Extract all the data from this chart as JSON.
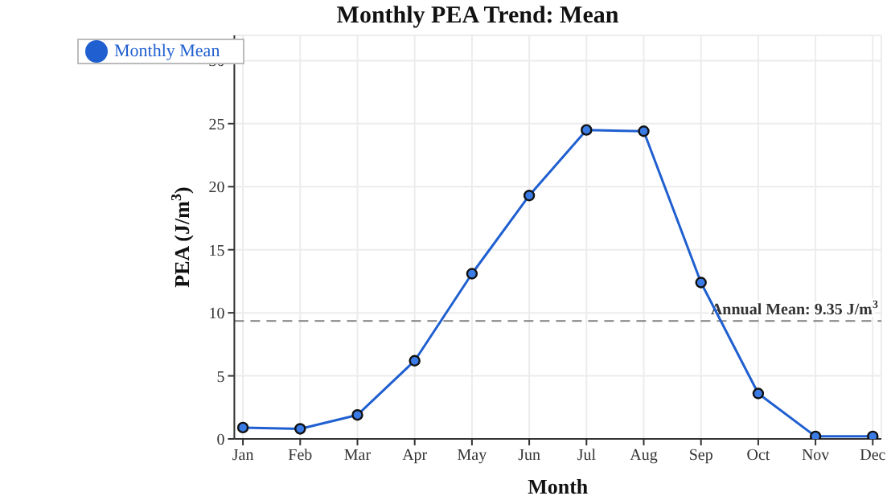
{
  "chart_data": {
    "type": "line",
    "title": "Monthly PEA Trend: Mean",
    "xlabel": "Month",
    "ylabel": "PEA (J/m$^{3}$)",
    "categories": [
      "Jan",
      "Feb",
      "Mar",
      "Apr",
      "May",
      "Jun",
      "Jul",
      "Aug",
      "Sep",
      "Oct",
      "Nov",
      "Dec"
    ],
    "series": [
      {
        "name": "Monthly Mean",
        "color": "#1f5fd0",
        "values": [
          0.9,
          0.8,
          1.9,
          6.2,
          13.1,
          19.3,
          24.5,
          24.4,
          12.4,
          3.6,
          0.2,
          0.2
        ]
      }
    ],
    "ylim": [
      0,
      32
    ],
    "yticks": [
      0,
      5,
      10,
      15,
      20,
      25,
      30
    ],
    "ref_lines": [
      {
        "axis": "y",
        "value": 9.35,
        "label": "Annual Mean: 9.35 J/m$^{3}$",
        "color": "#808080",
        "line_style": "dashed"
      }
    ],
    "grid": true,
    "legend": "top left",
    "marker": "circle",
    "line_style": "solid"
  }
}
